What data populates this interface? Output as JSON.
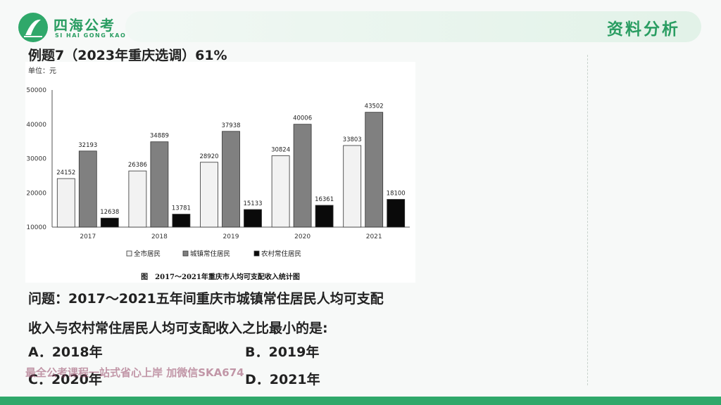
{
  "header": {
    "logo_name": "四海公考",
    "logo_pinyin": "SI HAI GONG KAO",
    "section_title": "资料分析"
  },
  "question": {
    "title": "例题7（2023年重庆选调）61%",
    "line1": "问题：2017～2021五年间重庆市城镇常住居民人均可支配",
    "line2": "收入与农村常住居民人均可支配收入之比最小的是:"
  },
  "options": {
    "a": "A．2018年",
    "b": "B．2019年",
    "c": "C．2020年",
    "d": "D．2021年"
  },
  "watermark": "最全公考课程一站式省心上岸 加微信SKA674",
  "colors": {
    "brand": "#2fa86a",
    "series_all": "#f2f2f2",
    "series_urban": "#808080",
    "series_rural": "#0a0a0a"
  },
  "chart_data": {
    "type": "bar",
    "unit_label": "单位：元",
    "categories": [
      "2017",
      "2018",
      "2019",
      "2020",
      "2021"
    ],
    "series": [
      {
        "name": "全市居民",
        "values": [
          24152,
          26386,
          28920,
          30824,
          33803
        ]
      },
      {
        "name": "城镇常住居民",
        "values": [
          32193,
          34889,
          37938,
          40006,
          43502
        ]
      },
      {
        "name": "农村常住居民",
        "values": [
          12638,
          13781,
          15133,
          16361,
          18100
        ]
      }
    ],
    "ylim": [
      10000,
      50000
    ],
    "yticks": [
      10000,
      20000,
      30000,
      40000,
      50000
    ],
    "caption": "图　2017～2021年重庆市人均可支配收入统计图",
    "legend_position": "bottom"
  }
}
